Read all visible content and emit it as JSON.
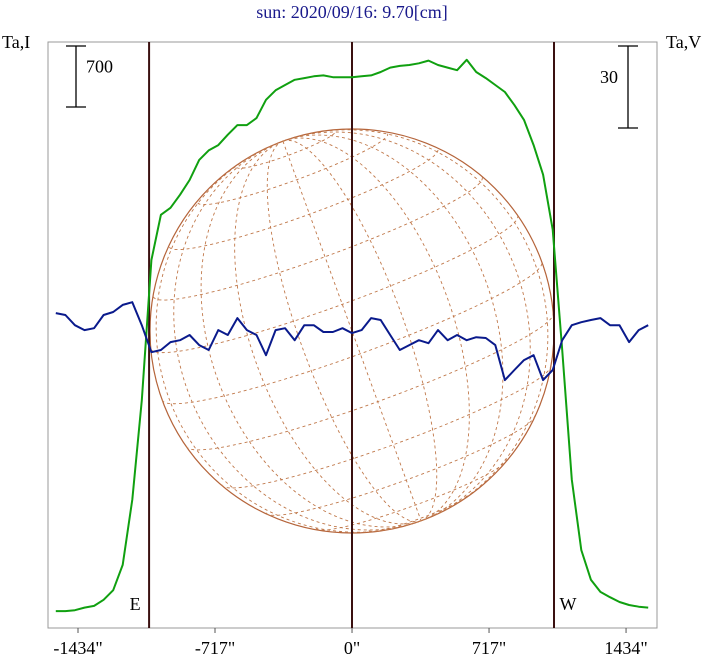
{
  "chart_data": {
    "type": "line",
    "title": "sun: 2020/09/16: 9.70[cm]",
    "y_label": "Ta,I",
    "y2_label": "Ta,V",
    "x": [
      -1550,
      -1500,
      -1450,
      -1400,
      -1350,
      -1300,
      -1250,
      -1200,
      -1150,
      -1100,
      -1050,
      -1000,
      -950,
      -900,
      -850,
      -800,
      -750,
      -700,
      -650,
      -600,
      -550,
      -500,
      -450,
      -400,
      -350,
      -300,
      -250,
      -200,
      -150,
      -100,
      -50,
      0,
      50,
      100,
      150,
      200,
      250,
      300,
      350,
      400,
      450,
      500,
      550,
      600,
      650,
      700,
      750,
      800,
      850,
      900,
      950,
      1000,
      1050,
      1100,
      1150,
      1200,
      1250,
      1300,
      1350,
      1400,
      1450,
      1500,
      1550
    ],
    "series": [
      {
        "name": "Ta,I",
        "color": "#10a010",
        "axis": "y",
        "values": [
          10,
          10,
          20,
          50,
          70,
          140,
          250,
          540,
          1290,
          2430,
          4040,
          4560,
          4640,
          4790,
          4960,
          5190,
          5300,
          5360,
          5480,
          5590,
          5590,
          5670,
          5880,
          5990,
          6050,
          6110,
          6130,
          6150,
          6160,
          6140,
          6140,
          6140,
          6150,
          6160,
          6200,
          6250,
          6270,
          6280,
          6300,
          6330,
          6280,
          6250,
          6220,
          6340,
          6200,
          6130,
          6050,
          5970,
          5820,
          5650,
          5360,
          5020,
          4390,
          3010,
          1520,
          710,
          370,
          230,
          170,
          115,
          80,
          60,
          50
        ]
      },
      {
        "name": "Ta,V",
        "color": "#0a1a8c",
        "axis": "y2",
        "values": [
          6.2,
          5.5,
          1.8,
          0,
          0.7,
          5.5,
          6.6,
          9.2,
          10.2,
          1.8,
          -8.1,
          -7.3,
          -4.4,
          -3.7,
          -1.8,
          -5.5,
          -7.3,
          0,
          -1.8,
          4.4,
          0,
          -1.8,
          -9.2,
          0,
          0.7,
          -3.7,
          1.8,
          1.8,
          -0.7,
          -0.7,
          0.7,
          -1.1,
          0,
          4.4,
          3.7,
          -1.8,
          -7.3,
          -5.5,
          -3.7,
          -4.8,
          0,
          -3.7,
          -1.8,
          -3.7,
          -2.6,
          -2.9,
          -5.5,
          -18.3,
          -14.6,
          -11,
          -9.2,
          -18.3,
          -14.6,
          -3.7,
          1.8,
          2.9,
          3.7,
          4.4,
          1.8,
          1.8,
          -4.4,
          0,
          1.8
        ]
      }
    ],
    "xlim": [
      -1591,
      1596
    ],
    "ylim": [
      -184,
      6544
    ],
    "y2lim": [
      -109,
      105.4
    ],
    "xticks": [
      {
        "value": -1434,
        "label": "-1434\""
      },
      {
        "value": -717,
        "label": "-717\""
      },
      {
        "value": 0,
        "label": "0\""
      },
      {
        "value": 717,
        "label": "717\""
      },
      {
        "value": 1434,
        "label": "1434\""
      }
    ],
    "limbs": [
      {
        "label": "E",
        "value": -1062
      },
      {
        "label": "W",
        "value": 1057
      }
    ],
    "scale_bars": [
      {
        "value": 700,
        "axis": "y"
      },
      {
        "value": 30,
        "axis": "y2"
      }
    ]
  }
}
